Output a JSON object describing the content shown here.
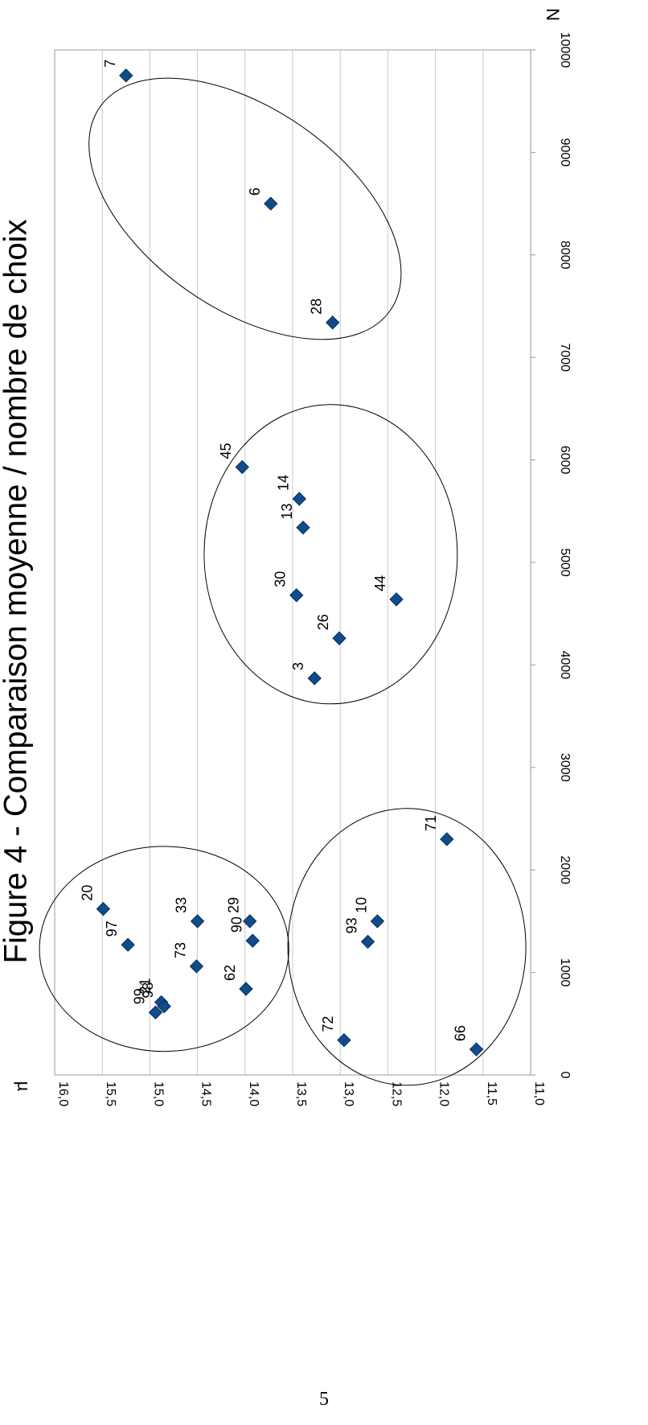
{
  "page": {
    "number": "5"
  },
  "chart_data": {
    "type": "scatter",
    "title": "Figure 4 - Comparaison moyenne / nombre de choix",
    "xlabel": "N",
    "ylabel": "µ",
    "xlim": [
      0,
      10000
    ],
    "ylim": [
      11.0,
      16.0
    ],
    "x_ticks": [
      "0",
      "1000",
      "2000",
      "3000",
      "4000",
      "5000",
      "6000",
      "7000",
      "8000",
      "9000",
      "10000"
    ],
    "y_ticks": [
      "11,0",
      "11,5",
      "12,0",
      "12,5",
      "13,0",
      "13,5",
      "14,0",
      "14,5",
      "15,0",
      "15,5",
      "16,0"
    ],
    "grid": "horizontal",
    "marker_color": "#0F4C8A",
    "orientation": "rotated-90-cw",
    "points": [
      {
        "label": "7",
        "x": 9750,
        "y": 15.25
      },
      {
        "label": "6",
        "x": 8500,
        "y": 13.73
      },
      {
        "label": "28",
        "x": 7340,
        "y": 13.08
      },
      {
        "label": "45",
        "x": 5930,
        "y": 14.03
      },
      {
        "label": "14",
        "x": 5620,
        "y": 13.43
      },
      {
        "label": "13",
        "x": 5340,
        "y": 13.39
      },
      {
        "label": "30",
        "x": 4680,
        "y": 13.46
      },
      {
        "label": "44",
        "x": 4640,
        "y": 12.41
      },
      {
        "label": "26",
        "x": 4260,
        "y": 13.01
      },
      {
        "label": "3",
        "x": 3870,
        "y": 13.27
      },
      {
        "label": "71",
        "x": 2300,
        "y": 11.88
      },
      {
        "label": "20",
        "x": 1620,
        "y": 15.49
      },
      {
        "label": "29",
        "x": 1500,
        "y": 13.95
      },
      {
        "label": "33",
        "x": 1500,
        "y": 14.5
      },
      {
        "label": "10",
        "x": 1500,
        "y": 12.61
      },
      {
        "label": "97",
        "x": 1270,
        "y": 15.23
      },
      {
        "label": "93",
        "x": 1300,
        "y": 12.71
      },
      {
        "label": "90",
        "x": 1310,
        "y": 13.92
      },
      {
        "label": "73",
        "x": 1060,
        "y": 14.51
      },
      {
        "label": "62",
        "x": 840,
        "y": 13.99
      },
      {
        "label": "21",
        "x": 710,
        "y": 14.88
      },
      {
        "label": "98",
        "x": 670,
        "y": 14.85
      },
      {
        "label": "99",
        "x": 610,
        "y": 14.94
      },
      {
        "label": "72",
        "x": 340,
        "y": 12.96
      },
      {
        "label": "66",
        "x": 250,
        "y": 11.57
      }
    ],
    "clusters": [
      {
        "cx": 8450,
        "cy": 14.0,
        "rx": 1730,
        "ry": 1.05,
        "angle": -55
      },
      {
        "cx": 5080,
        "cy": 13.1,
        "rx": 1460,
        "ry": 1.33,
        "angle": 0
      },
      {
        "cx": 1250,
        "cy": 12.3,
        "rx": 1350,
        "ry": 1.25,
        "angle": 0
      },
      {
        "cx": 1230,
        "cy": 14.85,
        "rx": 1000,
        "ry": 1.31,
        "angle": 0
      }
    ]
  }
}
